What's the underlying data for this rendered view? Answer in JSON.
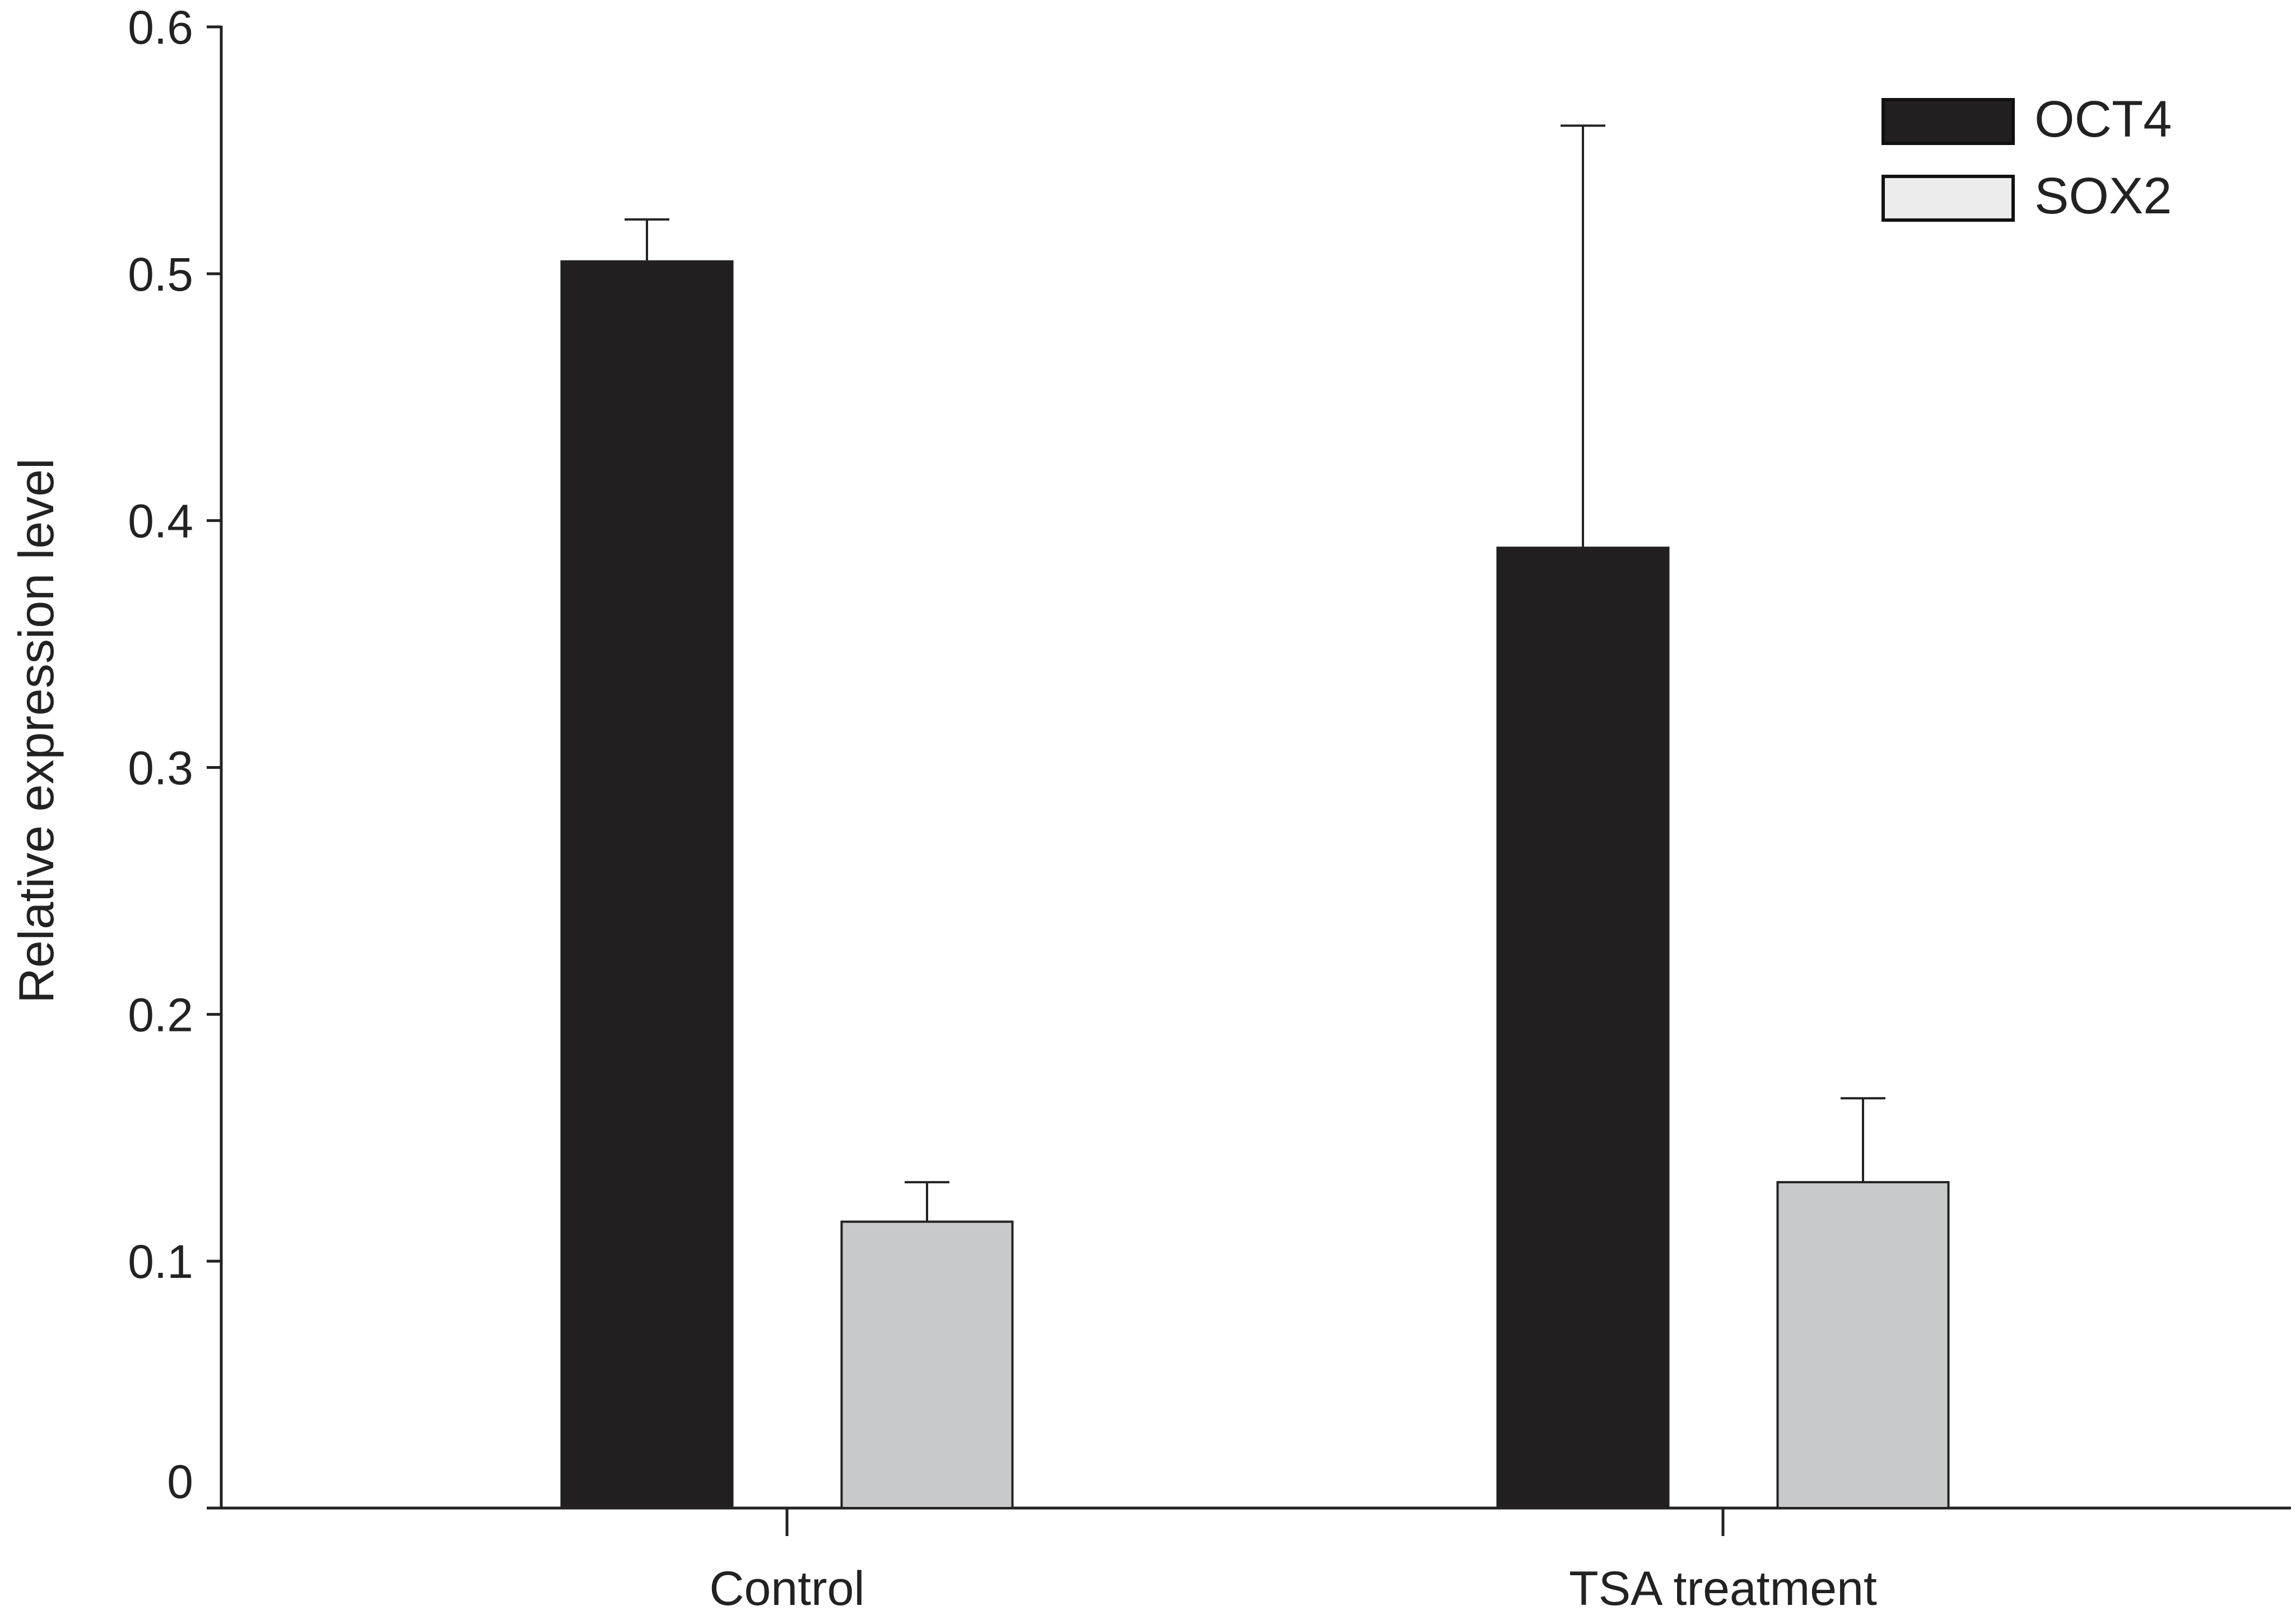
{
  "chart_data": {
    "type": "bar",
    "title": "",
    "xlabel": "",
    "ylabel": "Relative expression level",
    "categories": [
      "Control",
      "TSA treatment"
    ],
    "ylim": [
      0,
      0.6
    ],
    "yticks": [
      "0",
      "0.1",
      "0.2",
      "0.3",
      "0.4",
      "0.5",
      "0.6"
    ],
    "grid": false,
    "legend_position": "top-right",
    "series": [
      {
        "name": "OCT4",
        "values": [
          0.505,
          0.389
        ],
        "errors": [
          0.017,
          0.171
        ],
        "color": "#231f20"
      },
      {
        "name": "SOX2",
        "values": [
          0.116,
          0.132
        ],
        "errors": [
          0.016,
          0.034
        ],
        "color": "#c8c9cb"
      }
    ]
  }
}
